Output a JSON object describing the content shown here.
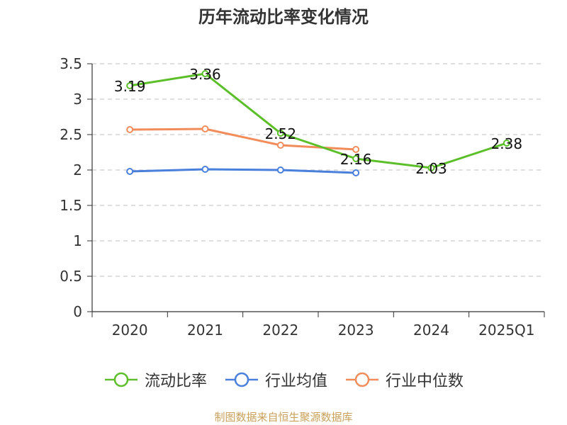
{
  "title": "历年流动比率变化情况",
  "source": "制图数据来自恒生聚源数据库",
  "chart_data": {
    "type": "line",
    "categories": [
      "2020",
      "2021",
      "2022",
      "2023",
      "2024",
      "2025Q1"
    ],
    "yticks": [
      "0",
      "0.5",
      "1",
      "1.5",
      "2",
      "2.5",
      "3",
      "3.5"
    ],
    "ylim": [
      0,
      3.5
    ],
    "grid": true,
    "legend_position": "bottom",
    "series": [
      {
        "name": "流动比率",
        "color": "#5cbf2a",
        "values": [
          3.19,
          3.36,
          2.52,
          2.16,
          2.03,
          2.38
        ],
        "labels": [
          "3.19",
          "3.36",
          "2.52",
          "2.16",
          "2.03",
          "2.38"
        ]
      },
      {
        "name": "行业均值",
        "color": "#4a7fdc",
        "values": [
          1.98,
          2.01,
          2.0,
          1.96,
          null,
          null
        ]
      },
      {
        "name": "行业中位数",
        "color": "#f28c5a",
        "values": [
          2.57,
          2.58,
          2.35,
          2.29,
          null,
          null
        ]
      }
    ]
  }
}
